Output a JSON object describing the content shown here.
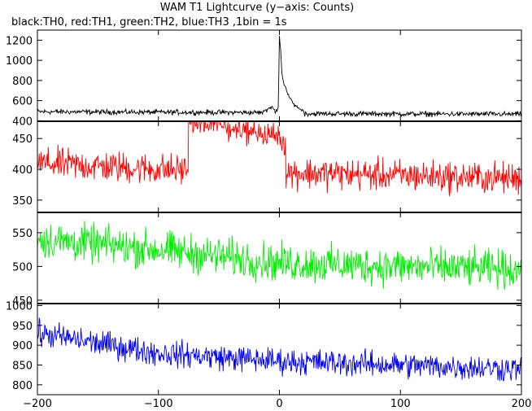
{
  "chart_data": {
    "type": "line",
    "title": "WAM T1 Lightcurve (y−axis: Counts)",
    "subtitle": "black:TH0, red:TH1, green:TH2, blue:TH3 ,1bin = 1s",
    "x_range": [
      -200,
      200
    ],
    "x_ticks": [
      -200,
      -100,
      0,
      100,
      200
    ],
    "x_tick_labels": [
      "−200",
      "−100",
      "0",
      "100",
      "200"
    ],
    "panels": [
      {
        "name": "TH0",
        "color": "#000000",
        "ylim": [
          395,
          1300
        ],
        "y_ticks": [
          400,
          600,
          800,
          1000,
          1200
        ],
        "y_tick_labels": [
          "400",
          "600",
          "800",
          "1000",
          "1200"
        ],
        "baseline_points": [
          [
            -200,
            490
          ],
          [
            -100,
            485
          ],
          [
            -10,
            482
          ],
          [
            0,
            480
          ],
          [
            20,
            470
          ],
          [
            100,
            468
          ],
          [
            200,
            465
          ]
        ],
        "noise_amplitude": 22,
        "burst_points": [
          [
            -12,
            500
          ],
          [
            -6,
            540
          ],
          [
            -4,
            495
          ],
          [
            -1,
            520
          ],
          [
            0,
            1250
          ],
          [
            1,
            1100
          ],
          [
            2,
            870
          ],
          [
            3,
            800
          ],
          [
            4,
            760
          ],
          [
            6,
            700
          ],
          [
            8,
            640
          ],
          [
            10,
            600
          ],
          [
            12,
            560
          ],
          [
            15,
            530
          ],
          [
            20,
            500
          ]
        ]
      },
      {
        "name": "TH1",
        "color": "#ff0000",
        "ylim": [
          330,
          478
        ],
        "y_ticks": [
          350,
          400,
          450
        ],
        "y_tick_labels": [
          "350",
          "400",
          "450"
        ],
        "baseline_points": [
          [
            -200,
            410
          ],
          [
            -100,
            400
          ],
          [
            0,
            395
          ],
          [
            100,
            390
          ],
          [
            200,
            385
          ]
        ],
        "noise_amplitude": 22,
        "burst_points": [
          [
            -75,
            478
          ],
          [
            0,
            455
          ],
          [
            5,
            440
          ]
        ]
      },
      {
        "name": "TH2",
        "color": "#00ee00",
        "ylim": [
          445,
          580
        ],
        "y_ticks": [
          450,
          500,
          550
        ],
        "y_tick_labels": [
          "450",
          "500",
          "550"
        ],
        "baseline_points": [
          [
            -200,
            540
          ],
          [
            -100,
            525
          ],
          [
            0,
            505
          ],
          [
            100,
            500
          ],
          [
            200,
            495
          ]
        ],
        "noise_amplitude": 24
      },
      {
        "name": "TH3",
        "color": "#0000ee",
        "ylim": [
          775,
          1005
        ],
        "y_ticks": [
          800,
          850,
          900,
          950,
          1000
        ],
        "y_tick_labels": [
          "800",
          "850",
          "900",
          "950",
          "1000"
        ],
        "baseline_points": [
          [
            -200,
            930
          ],
          [
            -150,
            905
          ],
          [
            -100,
            880
          ],
          [
            0,
            860
          ],
          [
            100,
            850
          ],
          [
            200,
            840
          ]
        ],
        "noise_amplitude": 28
      }
    ]
  }
}
